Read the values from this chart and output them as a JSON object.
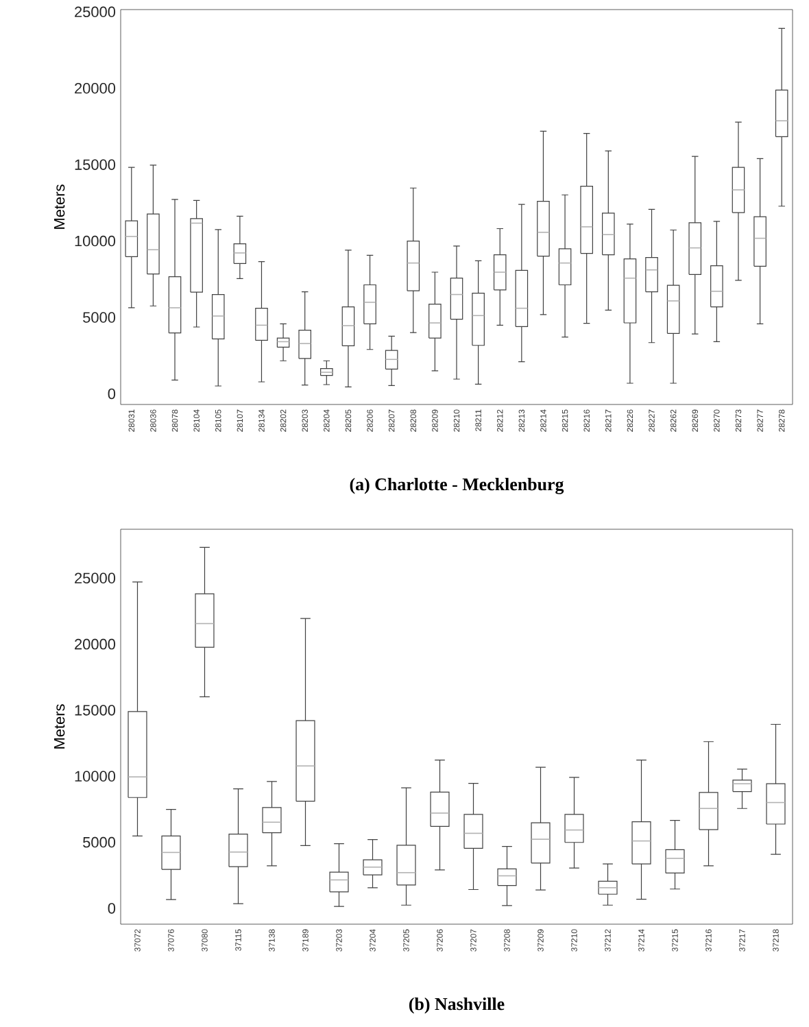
{
  "chart_data": [
    {
      "type": "box",
      "title": "(a) Charlotte - Mecklenburg",
      "ylabel": "Meters",
      "color": "#404040",
      "ylim": [
        -700,
        25150
      ],
      "yticks": [
        0,
        5000,
        10000,
        15000,
        20000,
        25000
      ],
      "categories": [
        "28031",
        "28036",
        "28078",
        "28104",
        "28105",
        "28107",
        "28134",
        "28202",
        "28203",
        "28204",
        "28205",
        "28206",
        "28207",
        "28208",
        "28209",
        "28210",
        "28211",
        "28212",
        "28213",
        "28214",
        "28215",
        "28216",
        "28217",
        "28226",
        "28227",
        "28262",
        "28269",
        "28270",
        "28273",
        "28277",
        "28278"
      ],
      "boxes": [
        {
          "low": 5630,
          "q1": 8980,
          "median": 10300,
          "q3": 11320,
          "high": 14820
        },
        {
          "low": 5750,
          "q1": 7840,
          "median": 9430,
          "q3": 11770,
          "high": 14970
        },
        {
          "low": 900,
          "q1": 3980,
          "median": 5630,
          "q3": 7660,
          "high": 12720
        },
        {
          "low": 4370,
          "q1": 6650,
          "median": 11170,
          "q3": 11470,
          "high": 12660
        },
        {
          "low": 510,
          "q1": 3590,
          "median": 5090,
          "q3": 6500,
          "high": 10750
        },
        {
          "low": 7540,
          "q1": 8530,
          "median": 9220,
          "q3": 9820,
          "high": 11620
        },
        {
          "low": 780,
          "q1": 3500,
          "median": 4490,
          "q3": 5600,
          "high": 8650
        },
        {
          "low": 2160,
          "q1": 3050,
          "median": 3410,
          "q3": 3650,
          "high": 4580
        },
        {
          "low": 570,
          "q1": 2310,
          "median": 3290,
          "q3": 4160,
          "high": 6680
        },
        {
          "low": 600,
          "q1": 1200,
          "median": 1410,
          "q3": 1650,
          "high": 2160
        },
        {
          "low": 450,
          "q1": 3140,
          "median": 4460,
          "q3": 5690,
          "high": 9400
        },
        {
          "low": 2900,
          "q1": 4580,
          "median": 5990,
          "q3": 7130,
          "high": 9070
        },
        {
          "low": 540,
          "q1": 1620,
          "median": 2250,
          "q3": 2840,
          "high": 3770
        },
        {
          "low": 4010,
          "q1": 6740,
          "median": 8560,
          "q3": 10000,
          "high": 13470
        },
        {
          "low": 1500,
          "q1": 3650,
          "median": 4640,
          "q3": 5870,
          "high": 7960
        },
        {
          "low": 960,
          "q1": 4880,
          "median": 6500,
          "q3": 7570,
          "high": 9670
        },
        {
          "low": 630,
          "q1": 3170,
          "median": 5120,
          "q3": 6590,
          "high": 8710
        },
        {
          "low": 4490,
          "q1": 6800,
          "median": 7960,
          "q3": 9100,
          "high": 10810
        },
        {
          "low": 2100,
          "q1": 4400,
          "median": 5600,
          "q3": 8080,
          "high": 12400
        },
        {
          "low": 5180,
          "q1": 9010,
          "median": 10570,
          "q3": 12600,
          "high": 17190
        },
        {
          "low": 3710,
          "q1": 7130,
          "median": 8560,
          "q3": 9490,
          "high": 13020
        },
        {
          "low": 4610,
          "q1": 9190,
          "median": 10930,
          "q3": 13590,
          "high": 17040
        },
        {
          "low": 5480,
          "q1": 9100,
          "median": 10420,
          "q3": 11830,
          "high": 15900
        },
        {
          "low": 690,
          "q1": 4640,
          "median": 7570,
          "q3": 8830,
          "high": 11110
        },
        {
          "low": 3350,
          "q1": 6680,
          "median": 8110,
          "q3": 8920,
          "high": 12070
        },
        {
          "low": 690,
          "q1": 3950,
          "median": 6080,
          "q3": 7100,
          "high": 10720
        },
        {
          "low": 3920,
          "q1": 7810,
          "median": 9550,
          "q3": 11200,
          "high": 15540
        },
        {
          "low": 3410,
          "q1": 5690,
          "median": 6710,
          "q3": 8380,
          "high": 11290
        },
        {
          "low": 7430,
          "q1": 11860,
          "median": 13350,
          "q3": 14820,
          "high": 17780
        },
        {
          "low": 4580,
          "q1": 8350,
          "median": 10180,
          "q3": 11590,
          "high": 15390
        },
        {
          "low": 12280,
          "q1": 16830,
          "median": 17870,
          "q3": 19880,
          "high": 23920
        }
      ]
    },
    {
      "type": "box",
      "title": "(b) Nashville",
      "ylabel": "Meters",
      "color": "#404040",
      "ylim": [
        -1200,
        28700
      ],
      "yticks": [
        0,
        5000,
        10000,
        15000,
        20000,
        25000
      ],
      "categories": [
        "37072",
        "37076",
        "37080",
        "37115",
        "37138",
        "37189",
        "37203",
        "37204",
        "37205",
        "37206",
        "37207",
        "37208",
        "37209",
        "37210",
        "37212",
        "37214",
        "37215",
        "37216",
        "37217",
        "37218"
      ],
      "boxes": [
        {
          "low": 5480,
          "q1": 8390,
          "median": 9950,
          "q3": 14900,
          "high": 24710
        },
        {
          "low": 660,
          "q1": 2950,
          "median": 4230,
          "q3": 5480,
          "high": 7490
        },
        {
          "low": 16010,
          "q1": 19760,
          "median": 21560,
          "q3": 23810,
          "high": 27330
        },
        {
          "low": 350,
          "q1": 3150,
          "median": 4260,
          "q3": 5620,
          "high": 9050
        },
        {
          "low": 3220,
          "q1": 5720,
          "median": 6520,
          "q3": 7630,
          "high": 9600
        },
        {
          "low": 4750,
          "q1": 8110,
          "median": 10780,
          "q3": 14210,
          "high": 21940
        },
        {
          "low": 140,
          "q1": 1250,
          "median": 2150,
          "q3": 2740,
          "high": 4890
        },
        {
          "low": 1560,
          "q1": 2530,
          "median": 3120,
          "q3": 3670,
          "high": 5200
        },
        {
          "low": 240,
          "q1": 1770,
          "median": 2700,
          "q3": 4780,
          "high": 9120
        },
        {
          "low": 2910,
          "q1": 6200,
          "median": 7210,
          "q3": 8800,
          "high": 11230
        },
        {
          "low": 1420,
          "q1": 4540,
          "median": 5680,
          "q3": 7110,
          "high": 9460
        },
        {
          "low": 210,
          "q1": 1730,
          "median": 2460,
          "q3": 2980,
          "high": 4680
        },
        {
          "low": 1390,
          "q1": 3430,
          "median": 5230,
          "q3": 6480,
          "high": 10680
        },
        {
          "low": 3050,
          "q1": 4990,
          "median": 5930,
          "q3": 7110,
          "high": 9910
        },
        {
          "low": 240,
          "q1": 1070,
          "median": 1560,
          "q3": 2050,
          "high": 3360
        },
        {
          "low": 690,
          "q1": 3360,
          "median": 5100,
          "q3": 6550,
          "high": 11230
        },
        {
          "low": 1460,
          "q1": 2670,
          "median": 3780,
          "q3": 4440,
          "high": 6660
        },
        {
          "low": 3220,
          "q1": 5960,
          "median": 7560,
          "q3": 8770,
          "high": 12620
        },
        {
          "low": 7560,
          "q1": 8840,
          "median": 9430,
          "q3": 9710,
          "high": 10540
        },
        {
          "low": 4090,
          "q1": 6380,
          "median": 8010,
          "q3": 9430,
          "high": 13930
        }
      ]
    }
  ]
}
